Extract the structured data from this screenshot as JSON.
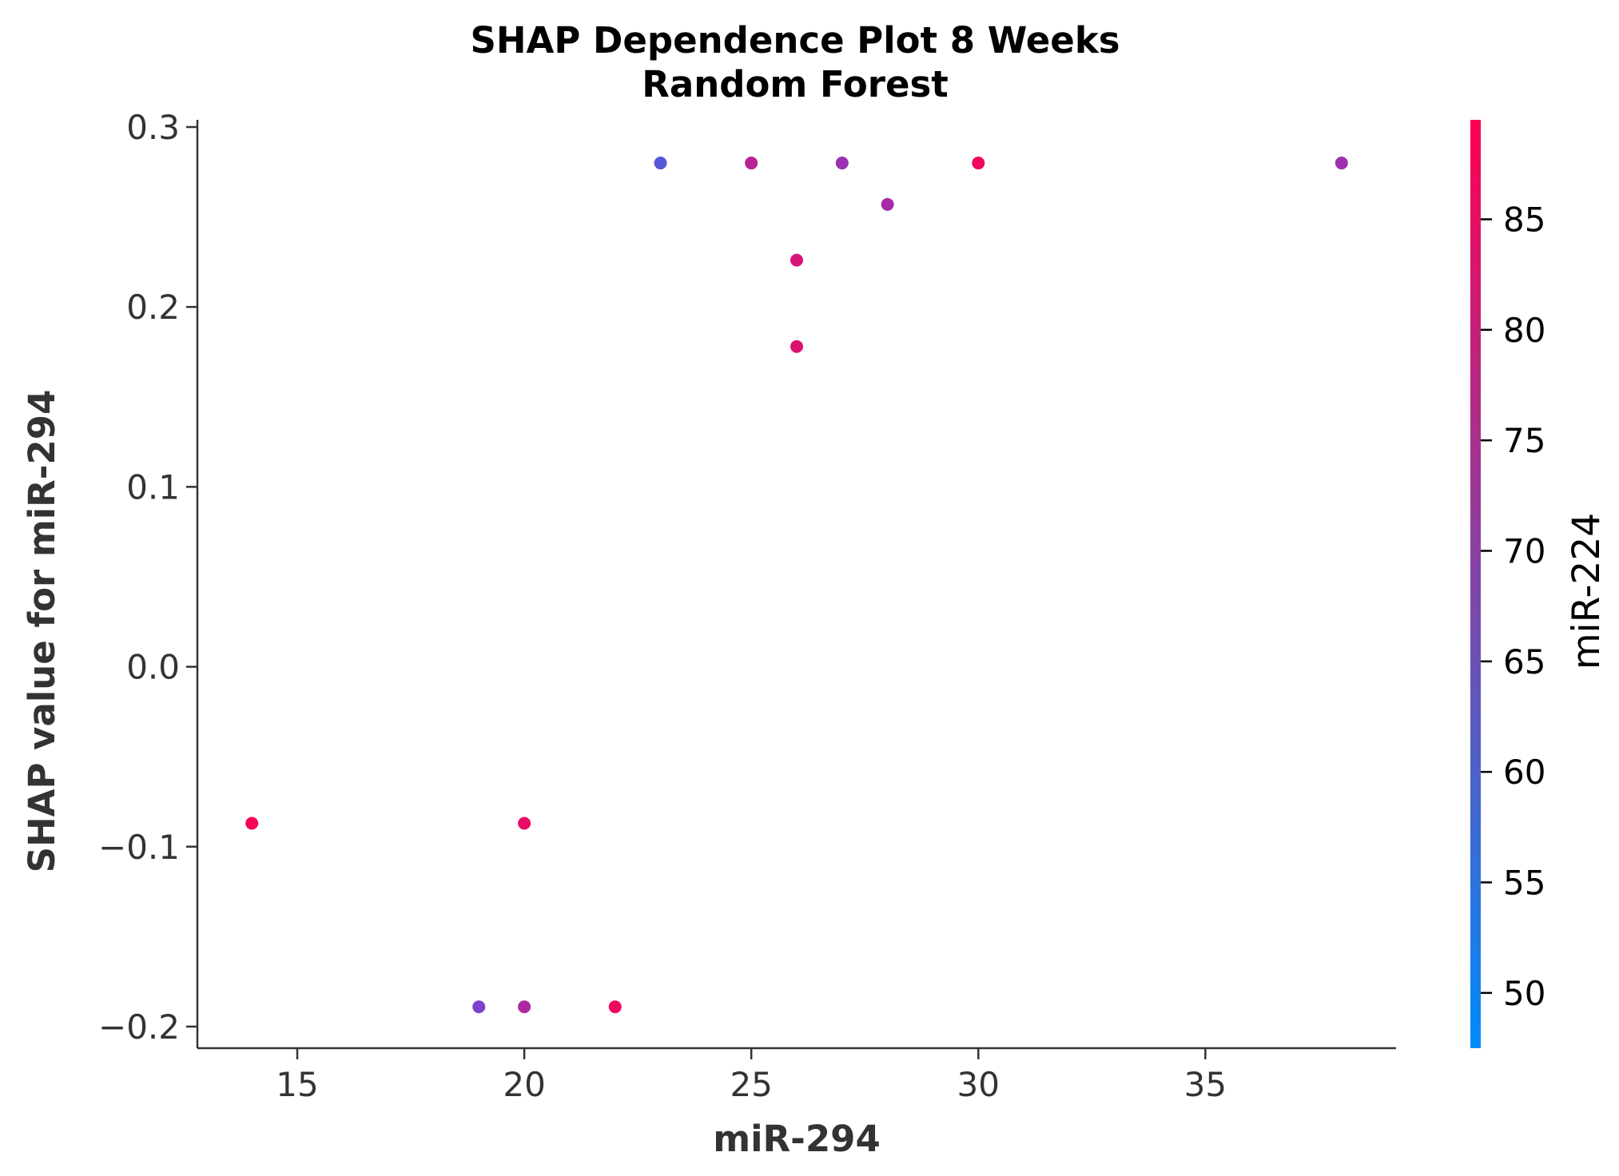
{
  "chart_data": {
    "type": "scatter",
    "title": "SHAP Dependence Plot 8 Weeks",
    "subtitle": "Random Forest",
    "xlabel": "miR-294",
    "ylabel": "SHAP value for miR-294",
    "xlim": [
      12.8,
      39.2
    ],
    "ylim": [
      -0.212,
      0.304
    ],
    "xticks": [
      15,
      20,
      25,
      30,
      35
    ],
    "xtick_labels": [
      "15",
      "20",
      "25",
      "30",
      "35"
    ],
    "yticks": [
      -0.2,
      -0.1,
      0.0,
      0.1,
      0.2,
      0.3
    ],
    "ytick_labels": [
      "−0.2",
      "−0.1",
      "0.0",
      "0.1",
      "0.2",
      "0.3"
    ],
    "grid": false,
    "colorbar": {
      "label": "miR-224",
      "range": [
        47.5,
        89.5
      ],
      "ticks": [
        50,
        55,
        60,
        65,
        70,
        75,
        80,
        85
      ],
      "tick_labels": [
        "50",
        "55",
        "60",
        "65",
        "70",
        "75",
        "80",
        "85"
      ],
      "colors": [
        "#008bfb",
        "#ff0051"
      ]
    },
    "points": [
      {
        "x": 14,
        "y": -0.087,
        "c": 88
      },
      {
        "x": 19,
        "y": -0.189,
        "c": 68
      },
      {
        "x": 20,
        "y": -0.189,
        "c": 76
      },
      {
        "x": 20,
        "y": -0.087,
        "c": 86
      },
      {
        "x": 22,
        "y": -0.189,
        "c": 87
      },
      {
        "x": 23,
        "y": 0.28,
        "c": 62
      },
      {
        "x": 25,
        "y": 0.28,
        "c": 78
      },
      {
        "x": 26,
        "y": 0.226,
        "c": 83
      },
      {
        "x": 26,
        "y": 0.178,
        "c": 84
      },
      {
        "x": 27,
        "y": 0.28,
        "c": 73
      },
      {
        "x": 28,
        "y": 0.257,
        "c": 75
      },
      {
        "x": 30,
        "y": 0.28,
        "c": 87
      },
      {
        "x": 38,
        "y": 0.28,
        "c": 74
      }
    ]
  }
}
